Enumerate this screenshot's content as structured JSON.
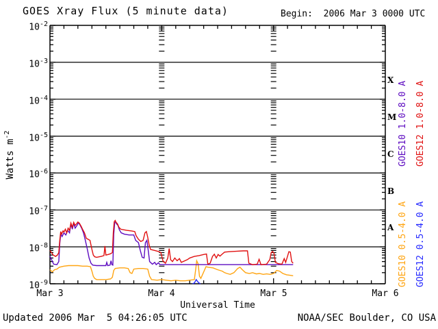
{
  "title": "GOES Xray Flux (5 minute data)",
  "begin_label": "Begin:  2006 Mar 3 0000 UTC",
  "footer": {
    "updated": "Updated 2006 Mar  5 04:26:05 UTC",
    "source": "NOAA/SEC Boulder, CO USA"
  },
  "axes": {
    "xlabel": "Universal Time",
    "ylabel_base": "Watts m",
    "ylabel_exp": "-2",
    "x_ticks": [
      "Mar 3",
      "Mar 4",
      "Mar 5",
      "Mar 6"
    ],
    "y_exponents": [
      -2,
      -3,
      -4,
      -5,
      -6,
      -7,
      -8,
      -9
    ],
    "flare_classes": [
      "X",
      "M",
      "C",
      "B",
      "A"
    ]
  },
  "legend": [
    {
      "label": "GOES10 1.0-8.0 A",
      "color": "#5c0ac0"
    },
    {
      "label": "GOES12 1.0-8.0 A",
      "color": "#e01010"
    },
    {
      "label": "GOES10 0.5-4.0 A",
      "color": "#ffa410"
    },
    {
      "label": "GOES12 0.5-4.0 A",
      "color": "#2428ff"
    }
  ],
  "chart_data": {
    "type": "line",
    "title": "GOES Xray Flux (5 minute data)",
    "xlabel": "Universal Time",
    "ylabel": "Watts m^-2",
    "y_scale": "log",
    "ylim": [
      1e-09,
      0.01
    ],
    "x_unit": "hours since 2006 Mar 3 0000 UTC",
    "x_range_hours": [
      0,
      72
    ],
    "x_tick_labels": [
      "Mar 3",
      "Mar 4",
      "Mar 5",
      "Mar 6"
    ],
    "x_minor_tick_hours": 3,
    "grid": "horizontal decade lines 1e-3..1e-8; dashed log-tick columns at day boundaries",
    "legend_position": "right, rotated",
    "flare_class_bands": {
      "A": [
        1e-08,
        1e-07
      ],
      "B": [
        1e-07,
        1e-06
      ],
      "C": [
        1e-06,
        1e-05
      ],
      "M": [
        1e-05,
        0.0001
      ],
      "X": [
        0.0001,
        0.001
      ]
    },
    "series": [
      {
        "name": "GOES12 0.5-4.0 A",
        "color": "#2428ff",
        "points": [
          [
            30.6,
            1e-09
          ],
          [
            31.0,
            1.05e-09
          ],
          [
            31.4,
            1.3e-09
          ],
          [
            31.7,
            1.15e-09
          ],
          [
            32.0,
            1.05e-09
          ],
          [
            32.3,
            1e-09
          ]
        ]
      },
      {
        "name": "GOES10 0.5-4.0 A",
        "color": "#ffa410",
        "points": [
          [
            0,
            2.4e-09
          ],
          [
            0.5,
            2.1e-09
          ],
          [
            1,
            2.4e-09
          ],
          [
            1.5,
            2.5e-09
          ],
          [
            2,
            2.8e-09
          ],
          [
            3,
            3e-09
          ],
          [
            4,
            3.1e-09
          ],
          [
            5,
            3.1e-09
          ],
          [
            6,
            3.1e-09
          ],
          [
            7,
            3e-09
          ],
          [
            8,
            3e-09
          ],
          [
            8.7,
            2.9e-09
          ],
          [
            9,
            2.2e-09
          ],
          [
            9.3,
            1.6e-09
          ],
          [
            9.6,
            1.4e-09
          ],
          [
            10,
            1.3e-09
          ],
          [
            11,
            1.3e-09
          ],
          [
            12,
            1.3e-09
          ],
          [
            13,
            1.35e-09
          ],
          [
            13.4,
            1.5e-09
          ],
          [
            13.7,
            2.3e-09
          ],
          [
            14,
            2.6e-09
          ],
          [
            15,
            2.7e-09
          ],
          [
            16,
            2.7e-09
          ],
          [
            16.8,
            2.6e-09
          ],
          [
            17.2,
            2e-09
          ],
          [
            17.6,
            1.9e-09
          ],
          [
            18,
            2.5e-09
          ],
          [
            19,
            2.6e-09
          ],
          [
            20,
            2.6e-09
          ],
          [
            21,
            2.5e-09
          ],
          [
            21.4,
            1.6e-09
          ],
          [
            21.8,
            1.3e-09
          ],
          [
            23,
            1.25e-09
          ],
          [
            24,
            1.3e-09
          ],
          [
            25,
            1.25e-09
          ],
          [
            26,
            1.2e-09
          ],
          [
            27,
            1.25e-09
          ],
          [
            28,
            1.2e-09
          ],
          [
            29,
            1.2e-09
          ],
          [
            30,
            1.25e-09
          ],
          [
            31,
            1.3e-09
          ],
          [
            31.3,
            2.5e-09
          ],
          [
            31.5,
            4.2e-09
          ],
          [
            31.8,
            3.5e-09
          ],
          [
            32.1,
            1.6e-09
          ],
          [
            32.4,
            1.4e-09
          ],
          [
            33.5,
            2.9e-09
          ],
          [
            34,
            2.8e-09
          ],
          [
            35,
            2.7e-09
          ],
          [
            36,
            2.4e-09
          ],
          [
            37,
            2.2e-09
          ],
          [
            37.5,
            2e-09
          ],
          [
            38,
            1.9e-09
          ],
          [
            38.7,
            1.8e-09
          ],
          [
            39.5,
            2e-09
          ],
          [
            40.3,
            2.6e-09
          ],
          [
            40.8,
            2.8e-09
          ],
          [
            41.3,
            2.4e-09
          ],
          [
            42,
            2e-09
          ],
          [
            42.8,
            1.9e-09
          ],
          [
            43.5,
            2e-09
          ],
          [
            44.3,
            1.85e-09
          ],
          [
            45,
            1.9e-09
          ],
          [
            45.8,
            1.8e-09
          ],
          [
            46.5,
            1.85e-09
          ],
          [
            47.3,
            1.8e-09
          ],
          [
            48,
            1.9e-09
          ],
          [
            48.7,
            2.3e-09
          ],
          [
            49.3,
            2.2e-09
          ],
          [
            50,
            1.9e-09
          ],
          [
            50.8,
            1.75e-09
          ],
          [
            51.5,
            1.7e-09
          ],
          [
            52.2,
            1.65e-09
          ]
        ]
      },
      {
        "name": "GOES10 1.0-8.0 A",
        "color": "#5c0ac0",
        "points": [
          [
            0,
            5.6e-09
          ],
          [
            0.8,
            3.4e-09
          ],
          [
            1.5,
            3.3e-09
          ],
          [
            1.9,
            4e-09
          ],
          [
            2.1,
            1.2e-08
          ],
          [
            2.3,
            2.2e-08
          ],
          [
            2.6,
            1.9e-08
          ],
          [
            3,
            2.4e-08
          ],
          [
            3.4,
            2.1e-08
          ],
          [
            3.8,
            2.8e-08
          ],
          [
            4.2,
            2.4e-08
          ],
          [
            4.5,
            4.2e-08
          ],
          [
            4.8,
            3e-08
          ],
          [
            5.1,
            4.4e-08
          ],
          [
            5.4,
            3.2e-08
          ],
          [
            5.8,
            3.8e-08
          ],
          [
            6.1,
            4.5e-08
          ],
          [
            6.4,
            4e-08
          ],
          [
            6.8,
            3.2e-08
          ],
          [
            7.2,
            2.4e-08
          ],
          [
            7.6,
            1.5e-08
          ],
          [
            8.0,
            9e-09
          ],
          [
            8.4,
            5e-09
          ],
          [
            8.8,
            3.6e-09
          ],
          [
            9.2,
            3.2e-09
          ],
          [
            10,
            3.1e-09
          ],
          [
            11,
            3.1e-09
          ],
          [
            12,
            3.1e-09
          ],
          [
            12.2,
            3.8e-09
          ],
          [
            12.4,
            3.1e-09
          ],
          [
            12.9,
            3.2e-09
          ],
          [
            13.1,
            4.2e-09
          ],
          [
            13.3,
            3.3e-09
          ],
          [
            13.5,
            3.2e-09
          ],
          [
            13.7,
            2.2e-08
          ],
          [
            13.9,
            4.4e-08
          ],
          [
            14.1,
            4.8e-08
          ],
          [
            14.3,
            4.2e-08
          ],
          [
            14.6,
            3.8e-08
          ],
          [
            14.9,
            2.9e-08
          ],
          [
            15.3,
            2.4e-08
          ],
          [
            16,
            2.2e-08
          ],
          [
            17,
            2.1e-08
          ],
          [
            18,
            2.1e-08
          ],
          [
            18.4,
            1.5e-08
          ],
          [
            19,
            1.3e-08
          ],
          [
            19.4,
            8e-09
          ],
          [
            19.8,
            5.2e-09
          ],
          [
            20.2,
            5e-09
          ],
          [
            20.5,
            1.3e-08
          ],
          [
            20.8,
            1.5e-08
          ],
          [
            21.1,
            8e-09
          ],
          [
            21.4,
            4e-09
          ],
          [
            22,
            3.4e-09
          ],
          [
            22.5,
            3.8e-09
          ],
          [
            22.8,
            3.3e-09
          ],
          [
            23.3,
            3.7e-09
          ],
          [
            23.6,
            3.3e-09
          ],
          [
            24,
            3.3e-09
          ],
          [
            26,
            3.3e-09
          ],
          [
            28,
            3.3e-09
          ],
          [
            30,
            3.3e-09
          ],
          [
            32,
            3.3e-09
          ],
          [
            34,
            3.3e-09
          ],
          [
            36,
            3.3e-09
          ],
          [
            38,
            3.3e-09
          ],
          [
            40,
            3.3e-09
          ],
          [
            42,
            3.3e-09
          ],
          [
            44,
            3.3e-09
          ],
          [
            46,
            3.3e-09
          ],
          [
            48,
            3.3e-09
          ],
          [
            50,
            3.3e-09
          ],
          [
            52.2,
            3.3e-09
          ]
        ]
      },
      {
        "name": "GOES12 1.0-8.0 A",
        "color": "#e01010",
        "points": [
          [
            0,
            8e-09
          ],
          [
            0.7,
            6e-09
          ],
          [
            1.2,
            5.5e-09
          ],
          [
            1.6,
            6e-09
          ],
          [
            1.9,
            7e-09
          ],
          [
            2.1,
            1.5e-08
          ],
          [
            2.3,
            2.6e-08
          ],
          [
            2.5,
            2.2e-08
          ],
          [
            2.8,
            2.7e-08
          ],
          [
            3.0,
            2.5e-08
          ],
          [
            3.3,
            3e-08
          ],
          [
            3.6,
            2.4e-08
          ],
          [
            3.9,
            3.2e-08
          ],
          [
            4.2,
            2.8e-08
          ],
          [
            4.5,
            4.4e-08
          ],
          [
            4.8,
            3.4e-08
          ],
          [
            5.1,
            4.6e-08
          ],
          [
            5.4,
            3.8e-08
          ],
          [
            5.7,
            4.2e-08
          ],
          [
            6.0,
            4.7e-08
          ],
          [
            6.3,
            4.4e-08
          ],
          [
            6.7,
            3.6e-08
          ],
          [
            7.0,
            3e-08
          ],
          [
            7.4,
            2.4e-08
          ],
          [
            7.8,
            1.7e-08
          ],
          [
            8.2,
            1.6e-08
          ],
          [
            8.6,
            1.5e-08
          ],
          [
            9.0,
            8.5e-09
          ],
          [
            9.3,
            6e-09
          ],
          [
            9.6,
            5.4e-09
          ],
          [
            10,
            5.2e-09
          ],
          [
            11,
            5.5e-09
          ],
          [
            11.6,
            5.8e-09
          ],
          [
            11.8,
            1.05e-08
          ],
          [
            12,
            6e-09
          ],
          [
            12.5,
            6.2e-09
          ],
          [
            13,
            6.5e-09
          ],
          [
            13.4,
            7e-09
          ],
          [
            13.6,
            2.5e-08
          ],
          [
            13.8,
            4.8e-08
          ],
          [
            14.0,
            5.2e-08
          ],
          [
            14.2,
            4.6e-08
          ],
          [
            14.5,
            4.2e-08
          ],
          [
            14.8,
            3.4e-08
          ],
          [
            15.2,
            3e-08
          ],
          [
            15.8,
            2.9e-08
          ],
          [
            16.5,
            2.8e-08
          ],
          [
            17.5,
            2.7e-08
          ],
          [
            18.2,
            2.6e-08
          ],
          [
            18.5,
            2e-08
          ],
          [
            19,
            1.6e-08
          ],
          [
            19.5,
            1.4e-08
          ],
          [
            20,
            1.5e-08
          ],
          [
            20.4,
            2.4e-08
          ],
          [
            20.7,
            2.6e-08
          ],
          [
            21,
            1.8e-08
          ],
          [
            21.3,
            1.1e-08
          ],
          [
            21.6,
            8.5e-09
          ],
          [
            22.5,
            8e-09
          ],
          [
            23.3,
            7.5e-09
          ],
          [
            23.8,
            7e-09
          ],
          [
            24.3,
            4e-09
          ],
          [
            24.8,
            3.6e-09
          ],
          [
            25.3,
            5e-09
          ],
          [
            25.6,
            9e-09
          ],
          [
            25.9,
            4.5e-09
          ],
          [
            26.3,
            4e-09
          ],
          [
            26.8,
            5e-09
          ],
          [
            27.3,
            4.2e-09
          ],
          [
            27.8,
            4.8e-09
          ],
          [
            28.2,
            3.8e-09
          ],
          [
            29.5,
            4.5e-09
          ],
          [
            30,
            5e-09
          ],
          [
            31,
            5.5e-09
          ],
          [
            32,
            5.8e-09
          ],
          [
            33,
            6.2e-09
          ],
          [
            33.6,
            6.4e-09
          ],
          [
            33.9,
            3.4e-09
          ],
          [
            34.4,
            3.6e-09
          ],
          [
            34.9,
            5.5e-09
          ],
          [
            35.3,
            6.3e-09
          ],
          [
            35.7,
            5e-09
          ],
          [
            36.1,
            6.2e-09
          ],
          [
            36.5,
            5.6e-09
          ],
          [
            37,
            6.4e-09
          ],
          [
            37.5,
            7.2e-09
          ],
          [
            38.5,
            7.4e-09
          ],
          [
            40,
            7.6e-09
          ],
          [
            41.5,
            7.8e-09
          ],
          [
            42.4,
            7.8e-09
          ],
          [
            42.7,
            3.6e-09
          ],
          [
            43.5,
            3.3e-09
          ],
          [
            44.5,
            3.4e-09
          ],
          [
            44.9,
            4.6e-09
          ],
          [
            45.3,
            3.3e-09
          ],
          [
            46.5,
            3.4e-09
          ],
          [
            47.2,
            4.5e-09
          ],
          [
            47.5,
            7e-09
          ],
          [
            47.8,
            7.5e-09
          ],
          [
            48.1,
            6.8e-09
          ],
          [
            48.4,
            3.8e-09
          ],
          [
            49,
            3.5e-09
          ],
          [
            49.8,
            3.4e-09
          ],
          [
            50.3,
            4.8e-09
          ],
          [
            50.6,
            3.8e-09
          ],
          [
            51.0,
            5.5e-09
          ],
          [
            51.3,
            7.4e-09
          ],
          [
            51.6,
            7.2e-09
          ],
          [
            51.9,
            4e-09
          ],
          [
            52.2,
            3.6e-09
          ]
        ]
      }
    ]
  }
}
